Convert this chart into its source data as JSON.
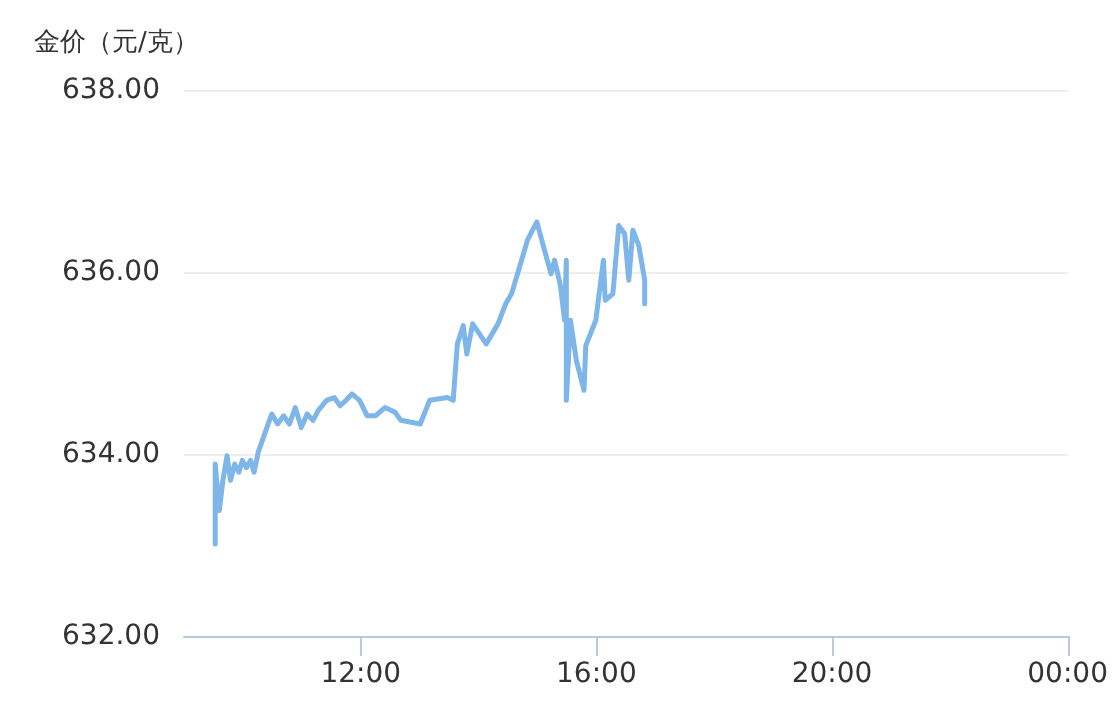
{
  "chart_data": {
    "type": "line",
    "ylabel": "金价（元/克）",
    "xlim": [
      9,
      24
    ],
    "xticks": [
      {
        "value": 12,
        "label": "12:00"
      },
      {
        "value": 16,
        "label": "16:00"
      },
      {
        "value": 20,
        "label": "20:00"
      },
      {
        "value": 24,
        "label": "00:00"
      }
    ],
    "ylim": [
      632,
      638
    ],
    "yticks": [
      {
        "value": 632,
        "label": "632.00"
      },
      {
        "value": 634,
        "label": "634.00"
      },
      {
        "value": 636,
        "label": "636.00"
      },
      {
        "value": 638,
        "label": "638.00"
      }
    ],
    "grid": "y",
    "marker": "none",
    "line_style": "solid",
    "series": [
      {
        "color": "#7eb6ea",
        "x": [
          9.53,
          9.53,
          9.6,
          9.66,
          9.73,
          9.79,
          9.86,
          9.93,
          9.99,
          10.06,
          10.13,
          10.19,
          10.26,
          10.39,
          10.49,
          10.59,
          10.69,
          10.79,
          10.89,
          10.99,
          11.09,
          11.19,
          11.28,
          11.42,
          11.55,
          11.65,
          11.75,
          11.85,
          11.98,
          12.11,
          12.25,
          12.41,
          12.58,
          12.68,
          13.01,
          13.17,
          13.47,
          13.57,
          13.64,
          13.74,
          13.8,
          13.9,
          14.13,
          14.33,
          14.46,
          14.56,
          14.73,
          14.83,
          14.99,
          15.09,
          15.23,
          15.29,
          15.39,
          15.46,
          15.49,
          15.49,
          15.56,
          15.66,
          15.79,
          15.82,
          15.99,
          16.12,
          16.15,
          16.28,
          16.38,
          16.48,
          16.55,
          16.62,
          16.72,
          16.82,
          16.82
        ],
        "values": [
          633.01,
          633.89,
          633.38,
          633.71,
          633.98,
          633.71,
          633.89,
          633.8,
          633.93,
          633.85,
          633.93,
          633.8,
          634.02,
          634.26,
          634.44,
          634.33,
          634.42,
          634.33,
          634.51,
          634.29,
          634.44,
          634.37,
          634.48,
          634.59,
          634.62,
          634.53,
          634.59,
          634.66,
          634.59,
          634.42,
          634.42,
          634.51,
          634.46,
          634.37,
          634.33,
          634.59,
          634.62,
          634.59,
          635.21,
          635.41,
          635.1,
          635.43,
          635.21,
          635.43,
          635.65,
          635.76,
          636.13,
          636.35,
          636.55,
          636.31,
          635.98,
          636.13,
          635.85,
          635.47,
          636.13,
          634.59,
          635.47,
          635.03,
          634.7,
          635.19,
          635.47,
          636.13,
          635.69,
          635.76,
          636.51,
          636.42,
          635.91,
          636.46,
          636.29,
          635.91,
          635.65
        ]
      }
    ]
  }
}
